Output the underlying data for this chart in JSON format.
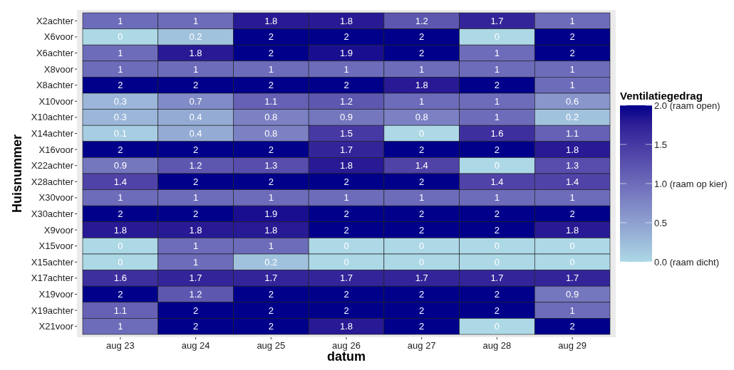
{
  "chart_data": {
    "type": "heatmap",
    "xlabel": "datum",
    "ylabel": "Huisnummer",
    "clabel": "Ventilatiegedrag",
    "categories": [
      "aug 23",
      "aug 24",
      "aug 25",
      "aug 26",
      "aug 27",
      "aug 28",
      "aug 29"
    ],
    "y_categories": [
      "X2achter",
      "X6voor",
      "X6achter",
      "X8voor",
      "X8achter",
      "X10voor",
      "X10achter",
      "X14achter",
      "X16voor",
      "X22achter",
      "X28achter",
      "X30voor",
      "X30achter",
      "X9voor",
      "X15voor",
      "X15achter",
      "X17achter",
      "X19voor",
      "X19achter",
      "X21voor"
    ],
    "cells": [
      [
        1,
        1,
        1.8,
        1.8,
        1.2,
        1.7,
        1
      ],
      [
        0,
        0.2,
        2,
        2,
        2,
        0,
        2
      ],
      [
        1,
        1.8,
        2,
        1.9,
        2,
        1,
        2
      ],
      [
        1,
        1,
        1,
        1,
        1,
        1,
        1
      ],
      [
        2,
        2,
        2,
        2,
        1.8,
        2,
        1
      ],
      [
        0.3,
        0.7,
        1.1,
        1.2,
        1,
        1,
        0.6
      ],
      [
        0.3,
        0.4,
        0.8,
        0.9,
        0.8,
        1,
        0.2
      ],
      [
        0.1,
        0.4,
        0.8,
        1.5,
        0,
        1.6,
        1.1
      ],
      [
        2,
        2,
        2,
        1.7,
        2,
        2,
        1.8
      ],
      [
        0.9,
        1.2,
        1.3,
        1.8,
        1.4,
        0,
        1.3
      ],
      [
        1.4,
        2,
        2,
        2,
        2,
        1.4,
        1.4
      ],
      [
        1,
        1,
        1,
        1,
        1,
        1,
        1
      ],
      [
        2,
        2,
        1.9,
        2,
        2,
        2,
        2
      ],
      [
        1.8,
        1.8,
        1.8,
        2,
        2,
        2,
        1.8
      ],
      [
        0,
        1,
        1,
        0,
        0,
        0,
        0
      ],
      [
        0,
        1,
        0.2,
        0,
        0,
        0,
        0
      ],
      [
        1.6,
        1.7,
        1.7,
        1.7,
        1.7,
        1.7,
        1.7
      ],
      [
        2,
        1.2,
        2,
        2,
        2,
        2,
        0.9
      ],
      [
        1.1,
        2,
        2,
        2,
        2,
        2,
        1
      ],
      [
        1,
        2,
        2,
        1.8,
        2,
        0,
        2
      ]
    ],
    "colors": [
      "#add8e6",
      "#00008b"
    ],
    "clim": [
      0,
      2
    ],
    "cticks": [
      {
        "value": 0,
        "label": "0.0 (raam dicht)"
      },
      {
        "value": 0.5,
        "label": "0.5"
      },
      {
        "value": 1,
        "label": "1.0 (raam op kier)"
      },
      {
        "value": 1.5,
        "label": "1.5"
      },
      {
        "value": 2,
        "label": "2.0 (raam open)"
      }
    ],
    "data_labels": true
  }
}
